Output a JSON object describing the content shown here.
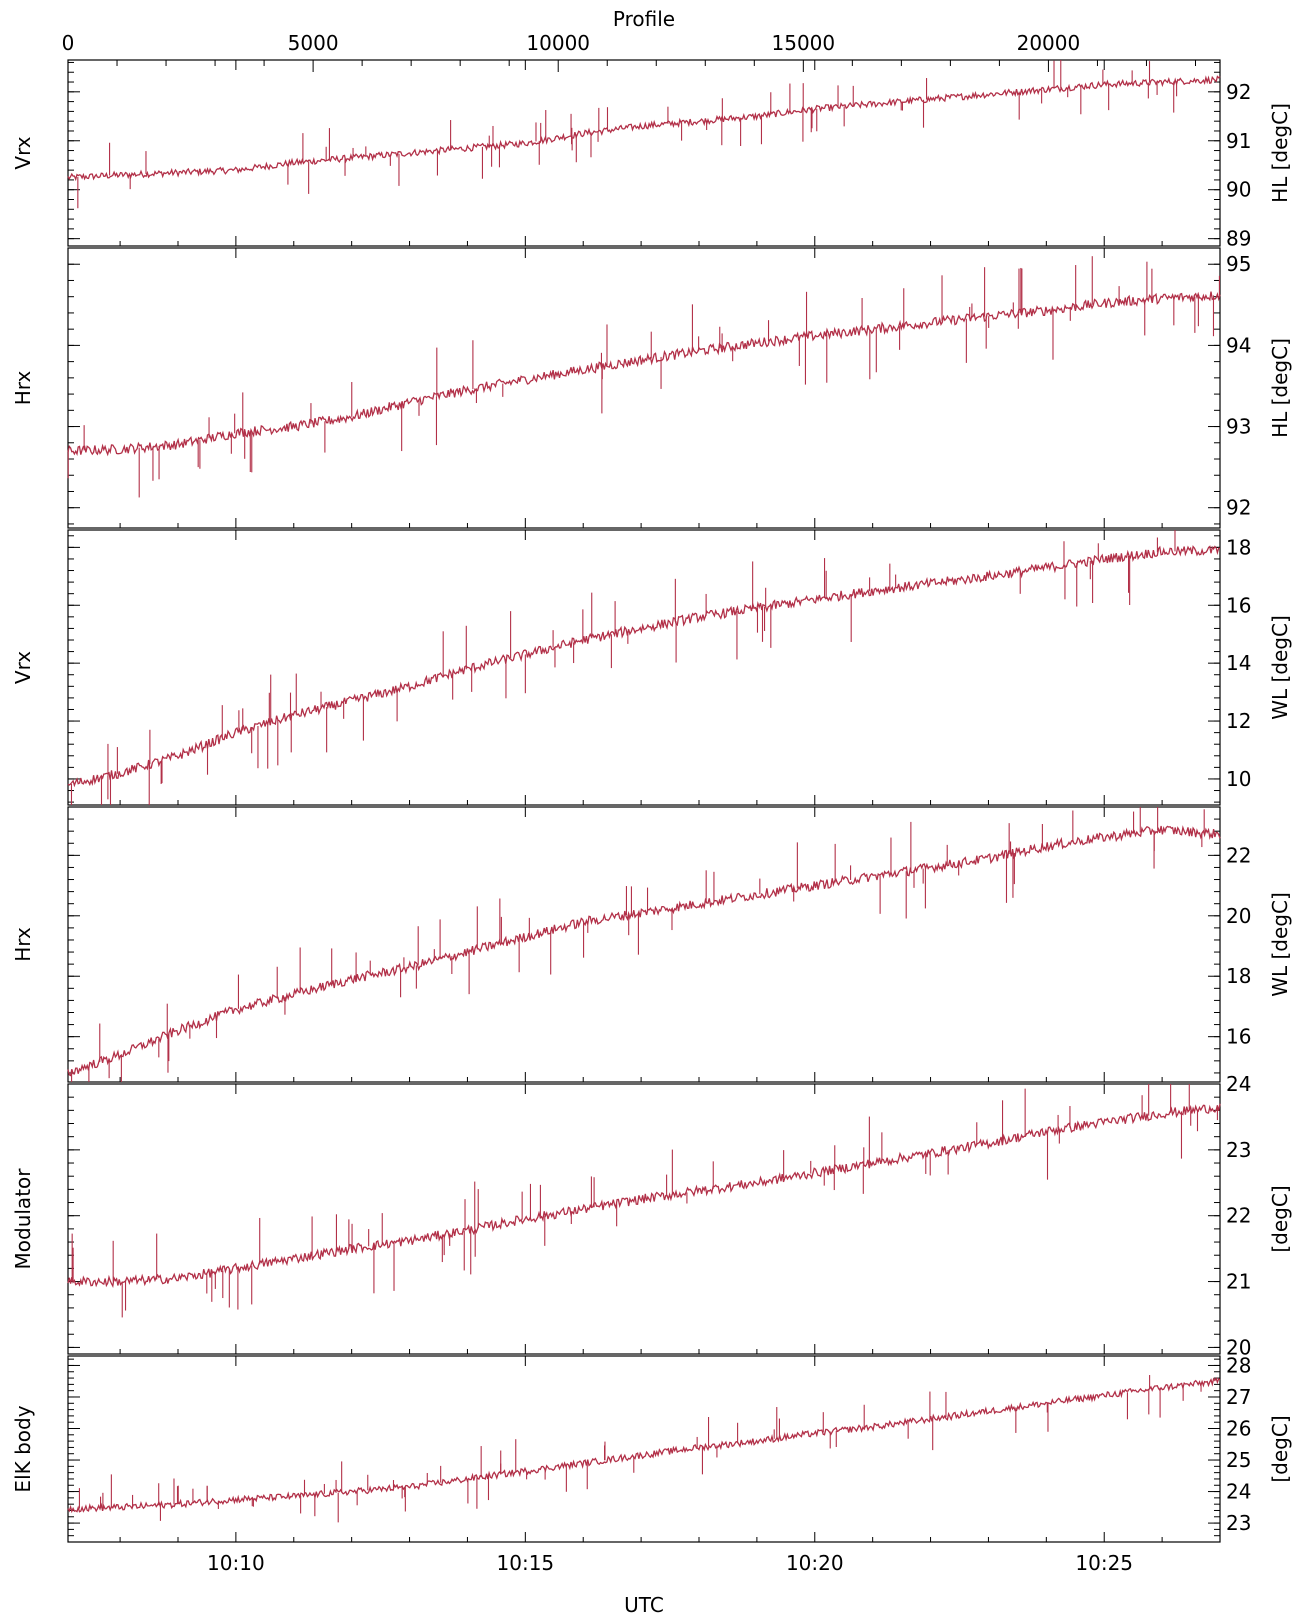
{
  "chart_data": {
    "type": "line",
    "top_axis": {
      "label": "Profile",
      "range": [
        0,
        23500
      ],
      "ticks": [
        0,
        5000,
        10000,
        15000,
        20000
      ],
      "tick_labels": [
        "0",
        "5000",
        "10000",
        "15000",
        "20000"
      ]
    },
    "bottom_axis": {
      "label": "UTC",
      "range_minutes": [
        607.1,
        627.0
      ],
      "ticks": [
        610,
        615,
        620,
        625
      ],
      "tick_labels": [
        "10:10",
        "10:15",
        "10:20",
        "10:25"
      ]
    },
    "colors": {
      "trace": "#b23048"
    },
    "panels": [
      {
        "left_label": "Vrx",
        "right_label": "HL  [degC]",
        "ylim": [
          88.85,
          92.65
        ],
        "yticks": [
          89,
          90,
          91,
          92
        ],
        "ytick_labels": [
          "89",
          "90",
          "91",
          "92"
        ],
        "series": [
          {
            "x": 607.1,
            "y": 90.25
          },
          {
            "x": 608.0,
            "y": 90.3
          },
          {
            "x": 609.0,
            "y": 90.35
          },
          {
            "x": 610.0,
            "y": 90.4
          },
          {
            "x": 611.0,
            "y": 90.55
          },
          {
            "x": 612.0,
            "y": 90.65
          },
          {
            "x": 613.0,
            "y": 90.75
          },
          {
            "x": 614.0,
            "y": 90.85
          },
          {
            "x": 615.0,
            "y": 90.95
          },
          {
            "x": 616.0,
            "y": 91.15
          },
          {
            "x": 617.0,
            "y": 91.3
          },
          {
            "x": 618.0,
            "y": 91.4
          },
          {
            "x": 619.0,
            "y": 91.5
          },
          {
            "x": 620.0,
            "y": 91.65
          },
          {
            "x": 621.0,
            "y": 91.75
          },
          {
            "x": 622.0,
            "y": 91.85
          },
          {
            "x": 623.0,
            "y": 91.95
          },
          {
            "x": 624.0,
            "y": 92.05
          },
          {
            "x": 625.0,
            "y": 92.15
          },
          {
            "x": 626.0,
            "y": 92.2
          },
          {
            "x": 627.0,
            "y": 92.25
          }
        ]
      },
      {
        "left_label": "Hrx",
        "right_label": "HL  [degC]",
        "ylim": [
          91.75,
          95.2
        ],
        "yticks": [
          92,
          93,
          94,
          95
        ],
        "ytick_labels": [
          "92",
          "93",
          "94",
          "95"
        ],
        "series": [
          {
            "x": 607.1,
            "y": 92.7
          },
          {
            "x": 608.0,
            "y": 92.72
          },
          {
            "x": 609.0,
            "y": 92.78
          },
          {
            "x": 610.0,
            "y": 92.92
          },
          {
            "x": 611.0,
            "y": 93.0
          },
          {
            "x": 612.0,
            "y": 93.12
          },
          {
            "x": 613.0,
            "y": 93.3
          },
          {
            "x": 614.0,
            "y": 93.45
          },
          {
            "x": 615.0,
            "y": 93.58
          },
          {
            "x": 616.0,
            "y": 93.7
          },
          {
            "x": 617.0,
            "y": 93.82
          },
          {
            "x": 618.0,
            "y": 93.93
          },
          {
            "x": 619.0,
            "y": 94.03
          },
          {
            "x": 620.0,
            "y": 94.12
          },
          {
            "x": 621.0,
            "y": 94.2
          },
          {
            "x": 622.0,
            "y": 94.28
          },
          {
            "x": 623.0,
            "y": 94.36
          },
          {
            "x": 624.0,
            "y": 94.43
          },
          {
            "x": 625.0,
            "y": 94.52
          },
          {
            "x": 626.0,
            "y": 94.58
          },
          {
            "x": 627.0,
            "y": 94.62
          }
        ]
      },
      {
        "left_label": "Vrx",
        "right_label": "WL  [degC]",
        "ylim": [
          9.1,
          18.6
        ],
        "yticks": [
          10,
          12,
          14,
          16,
          18
        ],
        "ytick_labels": [
          "10",
          "12",
          "14",
          "16",
          "18"
        ],
        "series": [
          {
            "x": 607.1,
            "y": 9.8
          },
          {
            "x": 608.0,
            "y": 10.2
          },
          {
            "x": 609.0,
            "y": 10.8
          },
          {
            "x": 610.0,
            "y": 11.6
          },
          {
            "x": 611.0,
            "y": 12.2
          },
          {
            "x": 612.0,
            "y": 12.7
          },
          {
            "x": 613.0,
            "y": 13.2
          },
          {
            "x": 614.0,
            "y": 13.8
          },
          {
            "x": 615.0,
            "y": 14.3
          },
          {
            "x": 616.0,
            "y": 14.8
          },
          {
            "x": 617.0,
            "y": 15.2
          },
          {
            "x": 618.0,
            "y": 15.6
          },
          {
            "x": 619.0,
            "y": 15.9
          },
          {
            "x": 620.0,
            "y": 16.2
          },
          {
            "x": 621.0,
            "y": 16.5
          },
          {
            "x": 622.0,
            "y": 16.75
          },
          {
            "x": 623.0,
            "y": 17.0
          },
          {
            "x": 624.0,
            "y": 17.3
          },
          {
            "x": 625.0,
            "y": 17.6
          },
          {
            "x": 626.0,
            "y": 17.85
          },
          {
            "x": 627.0,
            "y": 17.9
          }
        ]
      },
      {
        "left_label": "Hrx",
        "right_label": "WL  [degC]",
        "ylim": [
          14.5,
          23.6
        ],
        "yticks": [
          16,
          18,
          20,
          22
        ],
        "ytick_labels": [
          "16",
          "18",
          "20",
          "22"
        ],
        "series": [
          {
            "x": 607.1,
            "y": 14.8
          },
          {
            "x": 608.0,
            "y": 15.4
          },
          {
            "x": 609.0,
            "y": 16.2
          },
          {
            "x": 610.0,
            "y": 16.9
          },
          {
            "x": 611.0,
            "y": 17.4
          },
          {
            "x": 612.0,
            "y": 17.9
          },
          {
            "x": 613.0,
            "y": 18.3
          },
          {
            "x": 614.0,
            "y": 18.8
          },
          {
            "x": 615.0,
            "y": 19.3
          },
          {
            "x": 616.0,
            "y": 19.8
          },
          {
            "x": 617.0,
            "y": 20.1
          },
          {
            "x": 618.0,
            "y": 20.4
          },
          {
            "x": 619.0,
            "y": 20.7
          },
          {
            "x": 620.0,
            "y": 21.0
          },
          {
            "x": 621.0,
            "y": 21.3
          },
          {
            "x": 622.0,
            "y": 21.6
          },
          {
            "x": 623.0,
            "y": 21.9
          },
          {
            "x": 624.0,
            "y": 22.3
          },
          {
            "x": 625.0,
            "y": 22.6
          },
          {
            "x": 626.0,
            "y": 22.85
          },
          {
            "x": 627.0,
            "y": 22.7
          }
        ]
      },
      {
        "left_label": "Modulator",
        "right_label": "[degC]",
        "ylim": [
          19.9,
          24.0
        ],
        "yticks": [
          20,
          21,
          22,
          23,
          24
        ],
        "ytick_labels": [
          "20",
          "21",
          "22",
          "23",
          "24"
        ],
        "series": [
          {
            "x": 607.1,
            "y": 21.0
          },
          {
            "x": 608.0,
            "y": 21.0
          },
          {
            "x": 609.0,
            "y": 21.05
          },
          {
            "x": 610.0,
            "y": 21.2
          },
          {
            "x": 611.0,
            "y": 21.35
          },
          {
            "x": 612.0,
            "y": 21.5
          },
          {
            "x": 613.0,
            "y": 21.62
          },
          {
            "x": 614.0,
            "y": 21.78
          },
          {
            "x": 615.0,
            "y": 21.95
          },
          {
            "x": 616.0,
            "y": 22.1
          },
          {
            "x": 617.0,
            "y": 22.25
          },
          {
            "x": 618.0,
            "y": 22.38
          },
          {
            "x": 619.0,
            "y": 22.5
          },
          {
            "x": 620.0,
            "y": 22.65
          },
          {
            "x": 621.0,
            "y": 22.8
          },
          {
            "x": 622.0,
            "y": 22.95
          },
          {
            "x": 623.0,
            "y": 23.1
          },
          {
            "x": 624.0,
            "y": 23.28
          },
          {
            "x": 625.0,
            "y": 23.42
          },
          {
            "x": 626.0,
            "y": 23.55
          },
          {
            "x": 627.0,
            "y": 23.65
          }
        ]
      },
      {
        "left_label": "ElK  body",
        "right_label": "[degC]",
        "ylim": [
          22.4,
          28.3
        ],
        "yticks": [
          23,
          24,
          25,
          26,
          27,
          28
        ],
        "ytick_labels": [
          "23",
          "24",
          "25",
          "26",
          "27",
          "28"
        ],
        "series": [
          {
            "x": 607.1,
            "y": 23.45
          },
          {
            "x": 608.0,
            "y": 23.5
          },
          {
            "x": 609.0,
            "y": 23.6
          },
          {
            "x": 610.0,
            "y": 23.75
          },
          {
            "x": 611.0,
            "y": 23.85
          },
          {
            "x": 612.0,
            "y": 24.0
          },
          {
            "x": 613.0,
            "y": 24.15
          },
          {
            "x": 614.0,
            "y": 24.4
          },
          {
            "x": 615.0,
            "y": 24.65
          },
          {
            "x": 616.0,
            "y": 24.9
          },
          {
            "x": 617.0,
            "y": 25.15
          },
          {
            "x": 618.0,
            "y": 25.4
          },
          {
            "x": 619.0,
            "y": 25.6
          },
          {
            "x": 620.0,
            "y": 25.85
          },
          {
            "x": 621.0,
            "y": 26.05
          },
          {
            "x": 622.0,
            "y": 26.3
          },
          {
            "x": 623.0,
            "y": 26.55
          },
          {
            "x": 624.0,
            "y": 26.8
          },
          {
            "x": 625.0,
            "y": 27.05
          },
          {
            "x": 626.0,
            "y": 27.3
          },
          {
            "x": 627.0,
            "y": 27.5
          }
        ]
      }
    ]
  }
}
